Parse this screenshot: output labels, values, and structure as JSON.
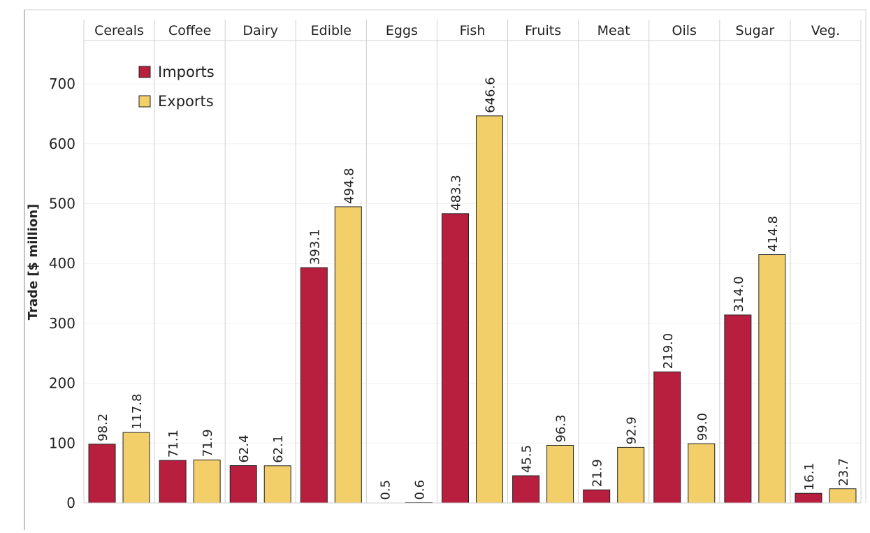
{
  "chart_data": {
    "type": "bar",
    "ylabel": "Trade [$ million]",
    "xlabel": "",
    "ylim": [
      0,
      780
    ],
    "yticks": [
      0,
      100,
      200,
      300,
      400,
      500,
      600,
      700
    ],
    "grid": true,
    "legend_position": "top-left",
    "categories": [
      "Cereals",
      "Coffee",
      "Dairy",
      "Edible",
      "Eggs",
      "Fish",
      "Fruits",
      "Meat",
      "Oils",
      "Sugar",
      "Veg."
    ],
    "series": [
      {
        "name": "Imports",
        "color": "#b81f3f",
        "values": [
          98.2,
          71.1,
          62.4,
          393.1,
          0.5,
          483.3,
          45.5,
          21.9,
          219.0,
          314.0,
          16.1
        ],
        "labels": [
          "98.2",
          "71.1",
          "62.4",
          "393.1",
          "0.5",
          "483.3",
          "45.5",
          "21.9",
          "219.0",
          "314.0",
          "16.1"
        ]
      },
      {
        "name": "Exports",
        "color": "#f2cf69",
        "values": [
          117.8,
          71.9,
          62.1,
          494.8,
          0.6,
          646.6,
          96.3,
          92.9,
          99.0,
          414.8,
          23.7
        ],
        "labels": [
          "117.8",
          "71.9",
          "62.1",
          "494.8",
          "0.6",
          "646.6",
          "96.3",
          "92.9",
          "99.0",
          "414.8",
          "23.7"
        ]
      }
    ]
  }
}
